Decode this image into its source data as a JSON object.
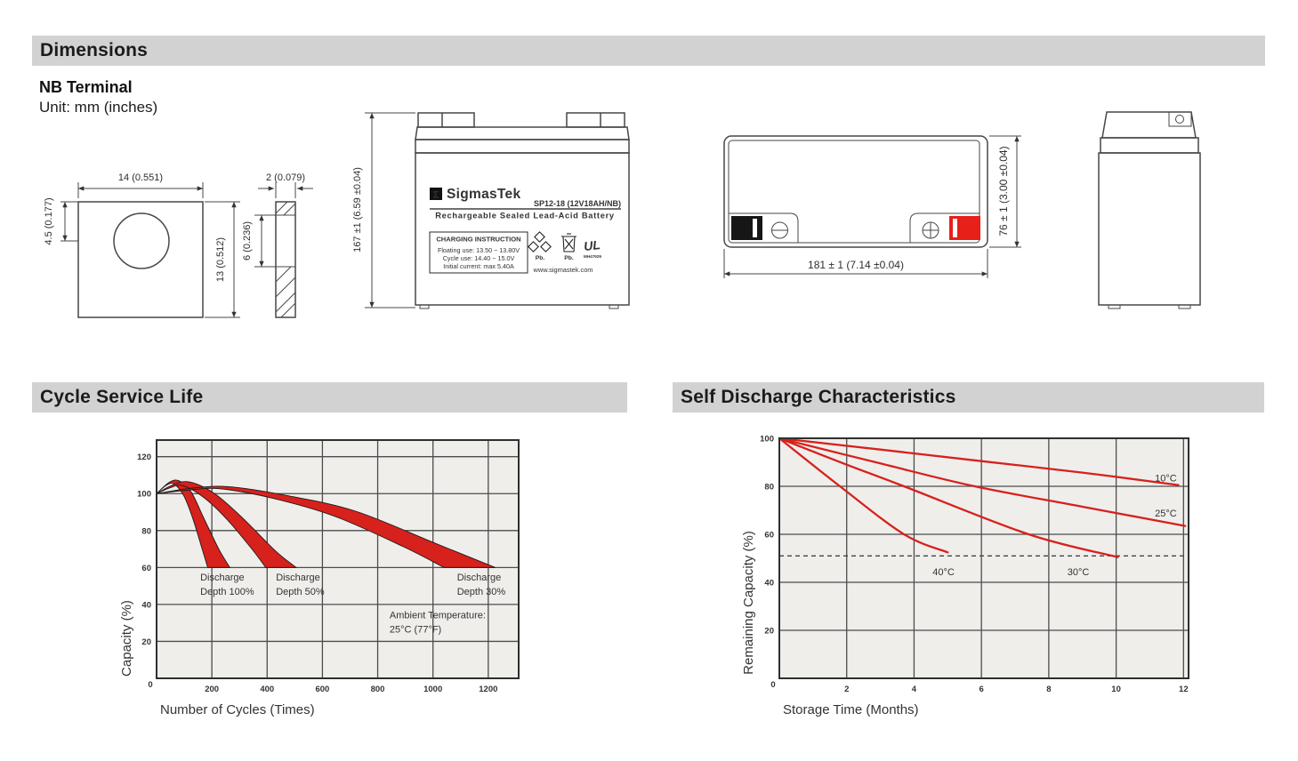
{
  "sections": {
    "dimensions": {
      "header": "Dimensions",
      "subtitle": "NB Terminal",
      "unit_note": "Unit: mm (inches)"
    },
    "cycle_service_life": {
      "header": "Cycle Service Life"
    },
    "self_discharge": {
      "header": "Self Discharge Characteristics"
    }
  },
  "terminal_drawing": {
    "front": {
      "width": "14 (0.551)",
      "hole_offset": "4.5 (0.177)",
      "height": "13 (0.512)"
    },
    "side": {
      "thickness": "2 (0.079)",
      "inner_height": "6 (0.236)"
    }
  },
  "battery_front": {
    "height_dim": "167 ±1 (6.59 ±0.04)",
    "label": {
      "sigma": "Σ",
      "brand": "SigmasTek",
      "model": "SP12-18 (12V18AH/NB)",
      "type_line": "Rechargeable Sealed Lead-Acid Battery",
      "charging_title": "CHARGING INSTRUCTION",
      "charging_line1": "Floating use: 13.50 ~ 13.80V",
      "charging_line2": "Cycle use: 14.40 ~ 15.0V",
      "charging_line3": "Initial current: max 5.40A",
      "pb_recycle": "Pb.",
      "pb_trash": "Pb.",
      "ul_brand": "UL",
      "ul_code": "MH47929",
      "website": "www.sigmastek.com"
    }
  },
  "battery_top": {
    "width_dim": "181 ± 1 (7.14 ±0.04)",
    "depth_dim": "76 ± 1 (3.00 ±0.04)"
  },
  "colors": {
    "accent_red": "#d7211c",
    "terminal_red": "#e8201a",
    "terminal_black": "#161616",
    "header_bg": "#d2d2d2",
    "plot_bg": "#efeeeb",
    "grid": "#4c4c4c",
    "border": "#2f2f2f",
    "tick_label": "#54423a",
    "annotation": "#2e2e2e"
  },
  "chart_data": [
    {
      "id": "cycle_service_life",
      "type": "area",
      "title": "Cycle Service Life",
      "xlabel": "Number of Cycles (Times)",
      "ylabel": "Capacity (%)",
      "xlim": [
        0,
        1310
      ],
      "ylim": [
        0,
        129
      ],
      "xticks": [
        0,
        200,
        400,
        600,
        800,
        1000,
        1200
      ],
      "yticks": [
        0,
        20,
        40,
        60,
        80,
        100,
        120
      ],
      "grid": true,
      "bands": [
        {
          "name": "Discharge Depth 100%",
          "upper": [
            [
              0,
              100
            ],
            [
              45,
              106
            ],
            [
              80,
              107
            ],
            [
              125,
              101
            ],
            [
              170,
              87
            ],
            [
              225,
              70
            ],
            [
              265,
              60
            ]
          ],
          "lower": [
            [
              0,
              100
            ],
            [
              35,
              104.5
            ],
            [
              62,
              105.3
            ],
            [
              98,
              99
            ],
            [
              130,
              87
            ],
            [
              163,
              71
            ],
            [
              185,
              60
            ]
          ]
        },
        {
          "name": "Discharge Depth 50%",
          "upper": [
            [
              0,
              100
            ],
            [
              60,
              104.8
            ],
            [
              120,
              106.3
            ],
            [
              210,
              100
            ],
            [
              310,
              87
            ],
            [
              430,
              69
            ],
            [
              505,
              60
            ]
          ],
          "lower": [
            [
              0,
              100
            ],
            [
              50,
              103.2
            ],
            [
              95,
              104.3
            ],
            [
              170,
              98
            ],
            [
              255,
              86
            ],
            [
              345,
              70
            ],
            [
              395,
              60
            ]
          ]
        },
        {
          "name": "Discharge Depth 30%",
          "upper": [
            [
              0,
              100
            ],
            [
              120,
              102.8
            ],
            [
              260,
              103.8
            ],
            [
              470,
              99
            ],
            [
              720,
              90.5
            ],
            [
              1010,
              73
            ],
            [
              1225,
              60
            ]
          ],
          "lower": [
            [
              0,
              100
            ],
            [
              110,
              101.8
            ],
            [
              230,
              102.6
            ],
            [
              420,
              97.5
            ],
            [
              640,
              88
            ],
            [
              890,
              71.5
            ],
            [
              1040,
              60
            ]
          ]
        }
      ],
      "annotations": [
        {
          "x": 158,
          "y": 53,
          "lines": [
            "Discharge",
            "Depth 100%"
          ]
        },
        {
          "x": 432,
          "y": 53,
          "lines": [
            "Discharge",
            "Depth 50%"
          ]
        },
        {
          "x": 1087,
          "y": 53,
          "lines": [
            "Discharge",
            "Depth 30%"
          ]
        },
        {
          "x": 843,
          "y": 32.5,
          "lines": [
            "Ambient Temperature:",
            "25°C (77°F)"
          ]
        }
      ]
    },
    {
      "id": "self_discharge",
      "type": "line",
      "title": "Self Discharge Characteristics",
      "xlabel": "Storage Time (Months)",
      "ylabel": "Remaining Capacity (%)",
      "xlim": [
        0,
        12.15
      ],
      "ylim": [
        0,
        100
      ],
      "xticks": [
        0,
        2,
        4,
        6,
        8,
        10,
        12
      ],
      "yticks": [
        0,
        20,
        40,
        60,
        80,
        100
      ],
      "grid": true,
      "dashed_line_y": 51,
      "series": [
        {
          "name": "10°C",
          "points": [
            [
              0,
              100
            ],
            [
              3,
              95.3
            ],
            [
              6,
              90.5
            ],
            [
              9,
              85.7
            ],
            [
              11.85,
              80.5
            ]
          ],
          "label_at": [
            11.15,
            82
          ]
        },
        {
          "name": "25°C",
          "points": [
            [
              0,
              100
            ],
            [
              3,
              89.5
            ],
            [
              5.8,
              80
            ],
            [
              9,
              71.5
            ],
            [
              12.05,
              63.5
            ]
          ],
          "label_at": [
            11.15,
            67.5
          ]
        },
        {
          "name": "30°C",
          "points": [
            [
              0,
              100
            ],
            [
              2,
              89
            ],
            [
              3.7,
              80
            ],
            [
              7.4,
              60
            ],
            [
              10.05,
              50.5
            ]
          ],
          "label_at": [
            8.55,
            43
          ]
        },
        {
          "name": "40°C",
          "points": [
            [
              0,
              100
            ],
            [
              1.8,
              80
            ],
            [
              3.7,
              60
            ],
            [
              5.0,
              52.5
            ]
          ],
          "label_at": [
            4.55,
            43
          ]
        }
      ]
    }
  ]
}
